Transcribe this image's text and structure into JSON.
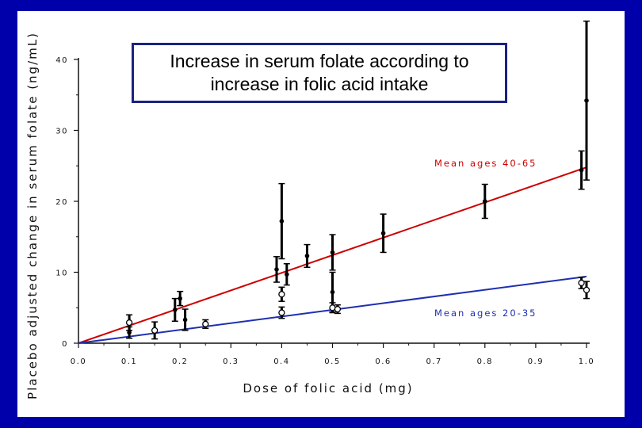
{
  "title": "Increase in serum folate according to increase in folic acid intake",
  "chart_data": {
    "type": "scatter",
    "title": "Increase in serum folate according to increase in folic acid intake",
    "xlabel": "Dose of folic acid (mg)",
    "ylabel": "Placebo adjusted change in serum folate (ng/mL)",
    "xlim": [
      0,
      1.0
    ],
    "ylim": [
      0,
      40
    ],
    "x_ticks": [
      "0.0",
      "0.1",
      "0.2",
      "0.3",
      "0.4",
      "0.5",
      "0.6",
      "0.7",
      "0.8",
      "0.9",
      "1.0"
    ],
    "y_ticks": [
      "0",
      "10",
      "20",
      "30",
      "40"
    ],
    "grid": false,
    "series": [
      {
        "name": "Mean ages 40-65",
        "color": "#cc0000",
        "marker": "filled-circle",
        "fit_line": {
          "slope": 24.8,
          "intercept": 0
        },
        "points": [
          {
            "x": 0.1,
            "y": 1.5,
            "err": 0.8
          },
          {
            "x": 0.19,
            "y": 4.7,
            "err": 1.6
          },
          {
            "x": 0.2,
            "y": 6.3,
            "err": 1.0
          },
          {
            "x": 0.21,
            "y": 3.3,
            "err": 1.5
          },
          {
            "x": 0.39,
            "y": 10.4,
            "err": 1.8
          },
          {
            "x": 0.4,
            "y": 17.2,
            "err": 5.3
          },
          {
            "x": 0.41,
            "y": 9.7,
            "err": 1.5
          },
          {
            "x": 0.45,
            "y": 12.3,
            "err": 1.6
          },
          {
            "x": 0.5,
            "y": 12.8,
            "err": 2.5
          },
          {
            "x": 0.5,
            "y": 7.2,
            "err": 2.8
          },
          {
            "x": 0.6,
            "y": 15.5,
            "err": 2.7
          },
          {
            "x": 0.8,
            "y": 20.0,
            "err": 2.4
          },
          {
            "x": 0.99,
            "y": 24.4,
            "err": 2.7
          },
          {
            "x": 1.0,
            "y": 34.2,
            "err": 11.2
          }
        ]
      },
      {
        "name": "Mean ages 20-35",
        "color": "#1f2fb0",
        "marker": "open-circle",
        "fit_line": {
          "slope": 9.4,
          "intercept": 0
        },
        "points": [
          {
            "x": 0.1,
            "y": 2.9,
            "err": 1.1
          },
          {
            "x": 0.15,
            "y": 1.8,
            "err": 1.2
          },
          {
            "x": 0.25,
            "y": 2.7,
            "err": 0.6
          },
          {
            "x": 0.4,
            "y": 6.9,
            "err": 1.0
          },
          {
            "x": 0.4,
            "y": 4.3,
            "err": 0.8
          },
          {
            "x": 0.5,
            "y": 5.0,
            "err": 0.7
          },
          {
            "x": 0.51,
            "y": 4.8,
            "err": 0.6
          },
          {
            "x": 0.99,
            "y": 8.5,
            "err": 0.8
          },
          {
            "x": 1.0,
            "y": 7.5,
            "err": 1.2
          }
        ]
      }
    ]
  }
}
